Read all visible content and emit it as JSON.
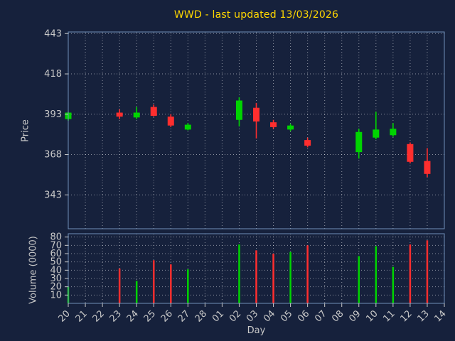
{
  "chart_data": {
    "type": "candlestick",
    "title": "WWD - last updated 13/03/2026",
    "xlabel": "Day",
    "price_axis": {
      "label": "Price",
      "ticks": [
        343,
        368,
        393,
        418,
        443
      ],
      "range": [
        322,
        444
      ]
    },
    "volume_axis": {
      "label": "Volume (0000)",
      "ticks": [
        10,
        20,
        30,
        40,
        50,
        60,
        70,
        80
      ],
      "range": [
        0,
        84
      ]
    },
    "x_ticks": [
      "20",
      "21",
      "22",
      "23",
      "24",
      "25",
      "26",
      "27",
      "28",
      "01",
      "02",
      "03",
      "04",
      "05",
      "06",
      "07",
      "08",
      "09",
      "10",
      "11",
      "12",
      "13",
      "14"
    ],
    "grid": true,
    "legend": "none",
    "colors": {
      "up": "#00d400",
      "down": "#ff2e2e",
      "background": "#16213c",
      "grid": "#ffffff",
      "axis": "#7090b8",
      "title": "#ffd700",
      "label": "#c8c8c8"
    },
    "candles": [
      {
        "day": "20",
        "open": 390,
        "high": 394.5,
        "low": 389,
        "close": 394,
        "volume": 20
      },
      {
        "day": "23",
        "open": 394,
        "high": 396,
        "low": 390,
        "close": 391.5,
        "volume": 42
      },
      {
        "day": "24",
        "open": 391,
        "high": 397.5,
        "low": 390,
        "close": 394,
        "volume": 27
      },
      {
        "day": "25",
        "open": 397.5,
        "high": 399,
        "low": 391.5,
        "close": 392,
        "volume": 52
      },
      {
        "day": "26",
        "open": 391.5,
        "high": 393,
        "low": 385,
        "close": 386,
        "volume": 47
      },
      {
        "day": "27",
        "open": 383.5,
        "high": 387.5,
        "low": 383,
        "close": 386.5,
        "volume": 41
      },
      {
        "day": "02",
        "open": 389.5,
        "high": 403.5,
        "low": 385.5,
        "close": 401.5,
        "volume": 71
      },
      {
        "day": "03",
        "open": 397,
        "high": 400,
        "low": 378,
        "close": 388.5,
        "volume": 64
      },
      {
        "day": "04",
        "open": 388,
        "high": 389.5,
        "low": 384,
        "close": 385,
        "volume": 60
      },
      {
        "day": "05",
        "open": 383.5,
        "high": 387,
        "low": 382.5,
        "close": 386,
        "volume": 62
      },
      {
        "day": "06",
        "open": 377,
        "high": 378.5,
        "low": 372.5,
        "close": 373.5,
        "volume": 70
      },
      {
        "day": "09",
        "open": 369.5,
        "high": 384,
        "low": 365.5,
        "close": 382,
        "volume": 57
      },
      {
        "day": "10",
        "open": 378.5,
        "high": 394.5,
        "low": 377.5,
        "close": 383.5,
        "volume": 69
      },
      {
        "day": "11",
        "open": 380,
        "high": 387.5,
        "low": 379,
        "close": 384,
        "volume": 44
      },
      {
        "day": "12",
        "open": 374.5,
        "high": 375.5,
        "low": 362.5,
        "close": 363.5,
        "volume": 71
      },
      {
        "day": "13",
        "open": 364,
        "high": 372,
        "low": 354,
        "close": 356,
        "volume": 76
      }
    ]
  }
}
